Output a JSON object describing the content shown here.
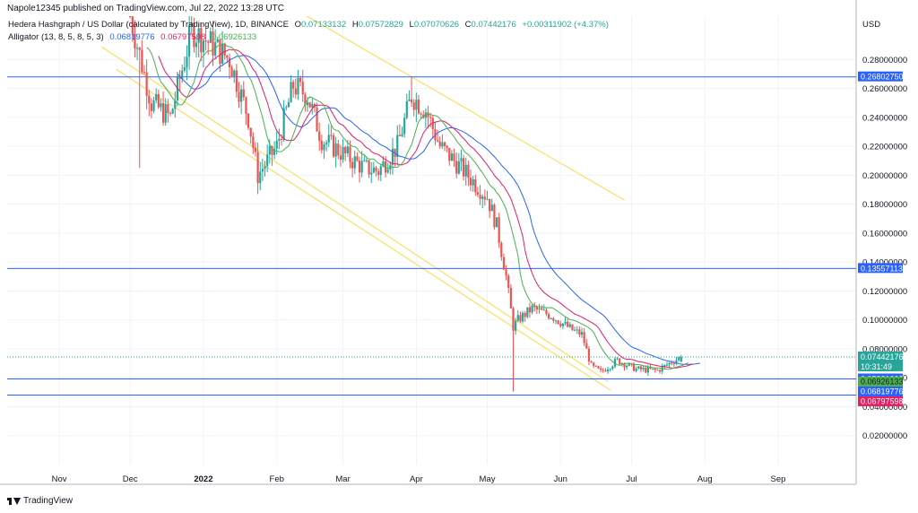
{
  "attribution": "Napole12345 published on TradingView.com, Jul 22, 2022 13:28 UTC",
  "legend": {
    "symbol": "Hedera Hashgraph / US Dollar (calculated by TradingView), 1D, BINANCE",
    "ohlc": [
      {
        "label": "O",
        "value": "0.07133132"
      },
      {
        "label": "H",
        "value": "0.07572829"
      },
      {
        "label": "L",
        "value": "0.07070626"
      },
      {
        "label": "C",
        "value": "0.07442176"
      }
    ],
    "change": "+0.00311902 (+4.37%)",
    "indicator": "Alligator (13, 8, 5, 8, 5, 3)",
    "indicator_values": [
      {
        "value": "0.06819776",
        "color": "#2962ff"
      },
      {
        "value": "0.06797598",
        "color": "#e91e63"
      },
      {
        "value": "0.06926133",
        "color": "#4caf50"
      }
    ]
  },
  "brand": "TradingView",
  "colors": {
    "up": "#26a69a",
    "down": "#ef5350",
    "jaw": "#2962ff",
    "teeth": "#e91e63",
    "lips": "#4caf50",
    "channel": "#f8e37a",
    "hline": "#2962ff",
    "grid": "#f0f3fa"
  },
  "chart_data": {
    "type": "candlestick",
    "title": "Hedera Hashgraph / US Dollar (calculated by TradingView), 1D, BINANCE",
    "currency": "USD",
    "ylim": [
      0.0,
      0.31
    ],
    "xlim": [
      "2021-10-10",
      "2022-10-04"
    ],
    "y_ticks": [
      {
        "value": 0.02,
        "label": "0.02000000"
      },
      {
        "value": 0.04,
        "label": "0.04000000"
      },
      {
        "value": 0.06,
        "label": "0.06000000"
      },
      {
        "value": 0.08,
        "label": "0.08000000"
      },
      {
        "value": 0.1,
        "label": "0.10000000"
      },
      {
        "value": 0.12,
        "label": "0.12000000"
      },
      {
        "value": 0.14,
        "label": "0.14000000"
      },
      {
        "value": 0.16,
        "label": "0.16000000"
      },
      {
        "value": 0.18,
        "label": "0.18000000"
      },
      {
        "value": 0.2,
        "label": "0.20000000"
      },
      {
        "value": 0.22,
        "label": "0.22000000"
      },
      {
        "value": 0.24,
        "label": "0.24000000"
      },
      {
        "value": 0.26,
        "label": "0.26000000"
      },
      {
        "value": 0.28,
        "label": "0.28000000"
      }
    ],
    "x_ticks": [
      {
        "date": "2021-11-01",
        "label": "Nov",
        "bold": false
      },
      {
        "date": "2021-12-01",
        "label": "Dec",
        "bold": false
      },
      {
        "date": "2022-01-01",
        "label": "2022",
        "bold": true
      },
      {
        "date": "2022-02-01",
        "label": "Feb",
        "bold": false
      },
      {
        "date": "2022-03-01",
        "label": "Mar",
        "bold": false
      },
      {
        "date": "2022-04-01",
        "label": "Apr",
        "bold": false
      },
      {
        "date": "2022-05-01",
        "label": "May",
        "bold": false
      },
      {
        "date": "2022-06-01",
        "label": "Jun",
        "bold": false
      },
      {
        "date": "2022-07-01",
        "label": "Jul",
        "bold": false
      },
      {
        "date": "2022-08-01",
        "label": "Aug",
        "bold": false
      },
      {
        "date": "2022-09-01",
        "label": "Sep",
        "bold": false
      }
    ],
    "key_points": [
      {
        "date": "2021-12-01",
        "close": 0.31
      },
      {
        "date": "2021-12-10",
        "close": 0.25
      },
      {
        "date": "2021-12-18",
        "close": 0.24
      },
      {
        "date": "2021-12-27",
        "close": 0.3
      },
      {
        "date": "2022-01-05",
        "close": 0.29
      },
      {
        "date": "2022-01-12",
        "close": 0.28
      },
      {
        "date": "2022-01-20",
        "close": 0.24
      },
      {
        "date": "2022-01-24",
        "close": 0.2
      },
      {
        "date": "2022-02-01",
        "close": 0.22
      },
      {
        "date": "2022-02-08",
        "close": 0.262
      },
      {
        "date": "2022-02-14",
        "close": 0.255
      },
      {
        "date": "2022-02-20",
        "close": 0.225
      },
      {
        "date": "2022-03-01",
        "close": 0.215
      },
      {
        "date": "2022-03-10",
        "close": 0.205
      },
      {
        "date": "2022-03-16",
        "close": 0.203
      },
      {
        "date": "2022-03-24",
        "close": 0.22
      },
      {
        "date": "2022-03-30",
        "close": 0.255
      },
      {
        "date": "2022-04-05",
        "close": 0.245
      },
      {
        "date": "2022-04-11",
        "close": 0.22
      },
      {
        "date": "2022-04-20",
        "close": 0.205
      },
      {
        "date": "2022-05-01",
        "close": 0.185
      },
      {
        "date": "2022-05-05",
        "close": 0.165
      },
      {
        "date": "2022-05-09",
        "close": 0.13
      },
      {
        "date": "2022-05-12",
        "close": 0.095
      },
      {
        "date": "2022-05-14",
        "close": 0.1
      },
      {
        "date": "2022-05-20",
        "close": 0.108
      },
      {
        "date": "2022-05-28",
        "close": 0.103
      },
      {
        "date": "2022-06-06",
        "close": 0.093
      },
      {
        "date": "2022-06-10",
        "close": 0.09
      },
      {
        "date": "2022-06-14",
        "close": 0.068
      },
      {
        "date": "2022-06-18",
        "close": 0.064
      },
      {
        "date": "2022-06-25",
        "close": 0.072
      },
      {
        "date": "2022-07-03",
        "close": 0.066
      },
      {
        "date": "2022-07-12",
        "close": 0.065
      },
      {
        "date": "2022-07-18",
        "close": 0.071
      },
      {
        "date": "2022-07-22",
        "close": 0.0744
      }
    ],
    "spikes": [
      {
        "date": "2021-12-05",
        "low": 0.205
      },
      {
        "date": "2022-01-24",
        "low": 0.187
      },
      {
        "date": "2022-03-30",
        "high": 0.268
      },
      {
        "date": "2022-05-12",
        "low": 0.0505
      }
    ],
    "horizontal_lines": [
      {
        "value": 0.2680275,
        "label": "0.26802750"
      },
      {
        "value": 0.13557113,
        "label": "0.13557113"
      },
      {
        "value": 0.05921003,
        "label": "0.05921003"
      },
      {
        "value": 0.04805905,
        "label": "0.04805905"
      }
    ],
    "current_price": {
      "value": 0.07442176,
      "label": "0.07442176",
      "countdown": "10:31:49"
    },
    "price_labels": [
      {
        "value": 0.06926133,
        "label": "0.06926133",
        "series": "lips"
      },
      {
        "value": 0.06819776,
        "label": "0.06819776",
        "series": "jaw"
      },
      {
        "value": 0.06797598,
        "label": "0.06797598",
        "series": "teeth"
      }
    ],
    "trendlines": [
      {
        "points": [
          {
            "date": "2021-11-25",
            "value": 0.2733
          },
          {
            "date": "2022-06-22",
            "value": 0.0515
          }
        ]
      },
      {
        "points": [
          {
            "date": "2021-11-19",
            "value": 0.2887
          },
          {
            "date": "2022-06-21",
            "value": 0.0574
          }
        ]
      },
      {
        "points": [
          {
            "date": "2022-02-13",
            "value": 0.3107
          },
          {
            "date": "2022-06-28",
            "value": 0.1828
          }
        ]
      }
    ]
  }
}
